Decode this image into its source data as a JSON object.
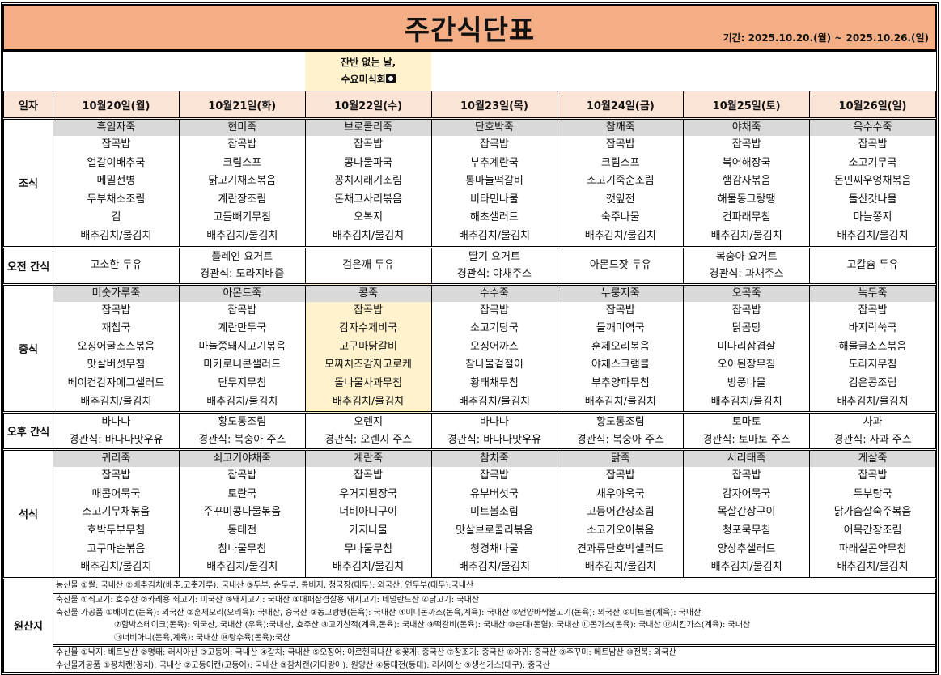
{
  "title": "주간식단표",
  "period": "기간: 2025.10.20.(월) ~ 2025.10.26.(일)",
  "note": {
    "line1": "잔반 없는 날,",
    "line2": "수요미식회",
    "icon": "plate-cutlery-icon"
  },
  "header_label": "일자",
  "meal_labels": {
    "breakfast": "조식",
    "am_snack": "오전 간식",
    "lunch": "중식",
    "pm_snack": "오후 간식",
    "dinner": "석식",
    "origin": "원산지"
  },
  "colors": {
    "title_bg": "#f4ae86",
    "header_bg": "#fce4d6",
    "porridge_bg": "#d9d9d9",
    "highlight_bg": "#fff2cc"
  },
  "days": [
    {
      "label": "10월20일(월)",
      "breakfast": {
        "porridge": "흑임자죽",
        "items": [
          "잡곡밥",
          "얼갈이배추국",
          "메밀전병",
          "두부채소조림",
          "김",
          "배추김치/물김치"
        ]
      },
      "am_snack": [
        "고소한 두유"
      ],
      "lunch": {
        "porridge": "미숫가루죽",
        "items": [
          "잡곡밥",
          "재첩국",
          "오징어굴소스볶음",
          "맛살버섯무침",
          "베이컨감자에그샐러드",
          "배추김치/물김치"
        ]
      },
      "pm_snack": [
        "바나나",
        "경관식: 바나나맛우유"
      ],
      "dinner": {
        "porridge": "귀리죽",
        "items": [
          "잡곡밥",
          "매콤어묵국",
          "소고기무채볶음",
          "호박두부무침",
          "고구마순볶음",
          "배추김치/물김치"
        ]
      }
    },
    {
      "label": "10월21일(화)",
      "breakfast": {
        "porridge": "현미죽",
        "items": [
          "잡곡밥",
          "크림스프",
          "닭고기채소볶음",
          "계란장조림",
          "고들빼기무침",
          "배추김치/물김치"
        ]
      },
      "am_snack": [
        "플레인 요거트",
        "경관식: 도라지배즙"
      ],
      "lunch": {
        "porridge": "아몬드죽",
        "items": [
          "잡곡밥",
          "계란만두국",
          "마늘쫑돼지고기볶음",
          "마카로니콘샐러드",
          "단무지무침",
          "배추김치/물김치"
        ]
      },
      "pm_snack": [
        "황도통조림",
        "경관식: 복숭아 주스"
      ],
      "dinner": {
        "porridge": "쇠고기야채죽",
        "items": [
          "잡곡밥",
          "토란국",
          "주꾸미콩나물볶음",
          "동태전",
          "참나물무침",
          "배추김치/물김치"
        ]
      }
    },
    {
      "label": "10월22일(수)",
      "breakfast": {
        "porridge": "브로콜리죽",
        "items": [
          "잡곡밥",
          "콩나물파국",
          "꽁치시래기조림",
          "돈채고사리볶음",
          "오복지",
          "배추김치/물김치"
        ]
      },
      "am_snack": [
        "검은깨 두유"
      ],
      "lunch": {
        "porridge": "콩죽",
        "items": [
          "잡곡밥",
          "감자수제비국",
          "고구마닭갈비",
          "모짜치즈감자고로케",
          "돌나물사과무침",
          "배추김치/물김치"
        ],
        "highlight": true
      },
      "pm_snack": [
        "오렌지",
        "경관식: 오렌지 주스"
      ],
      "dinner": {
        "porridge": "계란죽",
        "items": [
          "잡곡밥",
          "우거지된장국",
          "너비아니구이",
          "가지나물",
          "무나물무침",
          "배추김치/물김치"
        ]
      }
    },
    {
      "label": "10월23일(목)",
      "breakfast": {
        "porridge": "단호박죽",
        "items": [
          "잡곡밥",
          "부추계란국",
          "통마늘떡갈비",
          "비타민나물",
          "해초샐러드",
          "배추김치/물김치"
        ]
      },
      "am_snack": [
        "딸기 요거트",
        "경관식: 야채주스"
      ],
      "lunch": {
        "porridge": "수수죽",
        "items": [
          "잡곡밥",
          "소고기탕국",
          "오징어까스",
          "참나물겉절이",
          "황태채무침",
          "배추김치/물김치"
        ]
      },
      "pm_snack": [
        "바나나",
        "경관식: 바나나맛우유"
      ],
      "dinner": {
        "porridge": "참치죽",
        "items": [
          "잡곡밥",
          "유부버섯국",
          "미트볼조림",
          "맛살브로콜리볶음",
          "청경채나물",
          "배추김치/물김치"
        ]
      }
    },
    {
      "label": "10월24일(금)",
      "breakfast": {
        "porridge": "참깨죽",
        "items": [
          "잡곡밥",
          "크림스프",
          "소고기죽순조림",
          "깻잎전",
          "숙주나물",
          "배추김치/물김치"
        ]
      },
      "am_snack": [
        "아몬드잣 두유"
      ],
      "lunch": {
        "porridge": "누룽지죽",
        "items": [
          "잡곡밥",
          "들깨미역국",
          "훈제오리볶음",
          "야채스크램블",
          "부추양파무침",
          "배추김치/물김치"
        ]
      },
      "pm_snack": [
        "황도통조림",
        "경관식: 복숭아 주스"
      ],
      "dinner": {
        "porridge": "닭죽",
        "items": [
          "잡곡밥",
          "새우아욱국",
          "고등어간장조림",
          "소고기오이볶음",
          "견과류단호박샐러드",
          "배추김치/물김치"
        ]
      }
    },
    {
      "label": "10월25일(토)",
      "breakfast": {
        "porridge": "야채죽",
        "items": [
          "잡곡밥",
          "북어해장국",
          "햄감자볶음",
          "해물동그랑땡",
          "건파래무침",
          "배추김치/물김치"
        ]
      },
      "am_snack": [
        "복숭아 요거트",
        "경관식: 과채주스"
      ],
      "lunch": {
        "porridge": "오곡죽",
        "items": [
          "잡곡밥",
          "닭곰탕",
          "미나리삼겹살",
          "오이된장무침",
          "방풍나물",
          "배추김치/물김치"
        ]
      },
      "pm_snack": [
        "토마토",
        "경관식: 토마토 주스"
      ],
      "dinner": {
        "porridge": "서리태죽",
        "items": [
          "잡곡밥",
          "감자어묵국",
          "목살간장구이",
          "청포묵무침",
          "양상추샐러드",
          "배추김치/물김치"
        ]
      }
    },
    {
      "label": "10월26일(일)",
      "breakfast": {
        "porridge": "옥수수죽",
        "items": [
          "잡곡밥",
          "소고기무국",
          "돈민찌우엉채볶음",
          "돌산갓나물",
          "마늘쫑지",
          "배추김치/물김치"
        ]
      },
      "am_snack": [
        "고칼슘 두유"
      ],
      "lunch": {
        "porridge": "녹두죽",
        "items": [
          "잡곡밥",
          "바지락쑥국",
          "해물굴소스볶음",
          "도라지무침",
          "검은콩조림",
          "배추김치/물김치"
        ]
      },
      "pm_snack": [
        "사과",
        "경관식: 사과 주스"
      ],
      "dinner": {
        "porridge": "게살죽",
        "items": [
          "잡곡밥",
          "두부탕국",
          "닭가슴살숙주볶음",
          "어묵간장조림",
          "파래실곤약무침",
          "배추김치/물김치"
        ]
      }
    }
  ],
  "origin": {
    "agricultural": "농산물  ①쌀: 국내산  ②배추김치(배추,고춧가루): 국내산  ③두부, 순두부, 콩비지, 청국장(대두): 외국산, 연두부(대두):국내산",
    "livestock": "축산물  ①쇠고기: 호주산  ②카레용 쇠고기: 미국산  ③돼지고기: 국내산  ④대패삼겹살용 돼지고기: 네덜란드산  ④닭고기: 국내산",
    "livestock_processed_1": "축산물 가공품  ①베이컨(돈육): 외국산  ②훈제오리(오리육): 국내산, 중국산  ③동그랑땡(돈육): 국내산  ④미니돈까스(돈육,계육): 국내산  ⑤언양바싹불고기(돈육): 외국산  ⑥미트볼(계육): 국내산",
    "livestock_processed_2": "⑦함박스테이크(돈육): 외국산, 국내산 (우육):국내산, 호주산  ⑧고기산적(계육,돈육): 국내산  ⑨떡갈비(돈육): 국내산  ⑩순대(돈혈): 국내산  ⑪돈가스(돈육): 국내산  ⑫치킨가스(계육): 국내산",
    "livestock_processed_3": "⑬너비아니(돈육,계육): 국내산  ⑭탕수육(돈육):국산",
    "seafood": "수산물  ①낙지: 베트남산  ②명태: 러시아산  ③고등어: 국내산  ④갈치: 국내산  ⑤오징어: 아르헨티나산  ⑥꽃게: 중국산  ⑦참조기: 중국산  ⑧아귀: 중국산  ⑨주꾸미: 베트남산  ⑩전복: 외국산",
    "seafood_processed": "수산물가공품  ①꽁치캔(꽁치): 국내산  ②고등어캔(고등어): 국내산  ③참치캔(가다랑어): 원양산  ④동태전(동태): 러시아산  ⑤생선가스(대구): 중국산"
  }
}
